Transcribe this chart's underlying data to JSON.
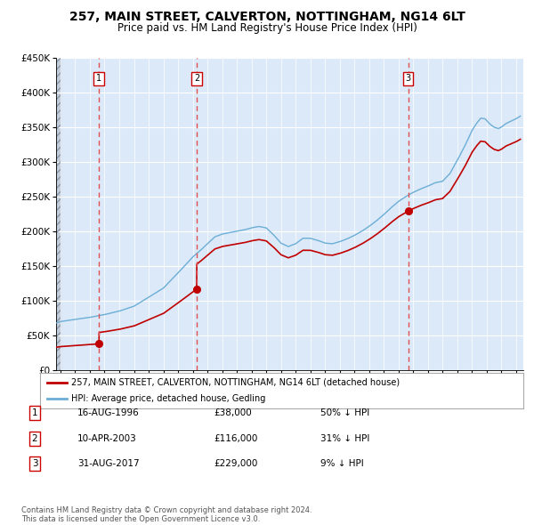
{
  "title_line1": "257, MAIN STREET, CALVERTON, NOTTINGHAM, NG14 6LT",
  "title_line2": "Price paid vs. HM Land Registry's House Price Index (HPI)",
  "ylim": [
    0,
    450000
  ],
  "xlim_start": 1993.7,
  "xlim_end": 2025.5,
  "yticks": [
    0,
    50000,
    100000,
    150000,
    200000,
    250000,
    300000,
    350000,
    400000,
    450000
  ],
  "ytick_labels": [
    "£0",
    "£50K",
    "£100K",
    "£150K",
    "£200K",
    "£250K",
    "£300K",
    "£350K",
    "£400K",
    "£450K"
  ],
  "plot_bg_color": "#dce9f8",
  "grid_color": "#ffffff",
  "hpi_color": "#6baed6",
  "price_color": "#c00000",
  "dashed_line_color": "#e05050",
  "hpi_refs_years": [
    1993.7,
    1994.0,
    1995.0,
    1996.0,
    1997.0,
    1998.0,
    1999.0,
    2000.0,
    2001.0,
    2002.0,
    2003.0,
    2003.5,
    2004.0,
    2004.5,
    2005.0,
    2005.5,
    2006.0,
    2006.5,
    2007.0,
    2007.5,
    2008.0,
    2008.5,
    2009.0,
    2009.5,
    2010.0,
    2010.5,
    2011.0,
    2011.5,
    2012.0,
    2012.5,
    2013.0,
    2013.5,
    2014.0,
    2014.5,
    2015.0,
    2015.5,
    2016.0,
    2016.5,
    2017.0,
    2017.5,
    2017.66,
    2018.0,
    2018.5,
    2019.0,
    2019.5,
    2020.0,
    2020.5,
    2021.0,
    2021.5,
    2022.0,
    2022.3,
    2022.6,
    2022.9,
    2023.2,
    2023.5,
    2023.8,
    2024.0,
    2024.3,
    2024.6,
    2025.0,
    2025.3
  ],
  "hpi_refs_vals": [
    68000,
    70000,
    73000,
    76000,
    80000,
    85000,
    92000,
    105000,
    118000,
    140000,
    163000,
    172000,
    182000,
    192000,
    196000,
    198000,
    200000,
    202000,
    205000,
    207000,
    205000,
    195000,
    183000,
    178000,
    182000,
    190000,
    190000,
    187000,
    183000,
    182000,
    185000,
    189000,
    194000,
    200000,
    207000,
    215000,
    224000,
    234000,
    243000,
    250000,
    252000,
    256000,
    261000,
    265000,
    270000,
    272000,
    283000,
    302000,
    322000,
    345000,
    355000,
    363000,
    362000,
    355000,
    350000,
    348000,
    350000,
    355000,
    358000,
    362000,
    366000
  ],
  "purchases": [
    {
      "label": "1",
      "date_year": 1996.62,
      "price": 38000
    },
    {
      "label": "2",
      "date_year": 2003.27,
      "price": 116000
    },
    {
      "label": "3",
      "date_year": 2017.66,
      "price": 229000
    }
  ],
  "legend_property_label": "257, MAIN STREET, CALVERTON, NOTTINGHAM, NG14 6LT (detached house)",
  "legend_hpi_label": "HPI: Average price, detached house, Gedling",
  "table_rows": [
    {
      "num": "1",
      "date": "16-AUG-1996",
      "price": "£38,000",
      "hpi": "50% ↓ HPI"
    },
    {
      "num": "2",
      "date": "10-APR-2003",
      "price": "£116,000",
      "hpi": "31% ↓ HPI"
    },
    {
      "num": "3",
      "date": "31-AUG-2017",
      "price": "£229,000",
      "hpi": "9% ↓ HPI"
    }
  ],
  "footer": "Contains HM Land Registry data © Crown copyright and database right 2024.\nThis data is licensed under the Open Government Licence v3.0."
}
